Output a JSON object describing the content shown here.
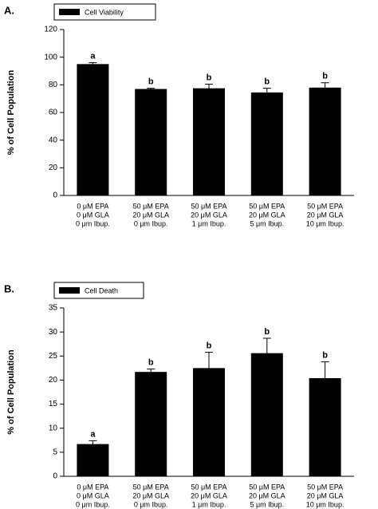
{
  "chart_data": [
    {
      "type": "bar",
      "panel": "A.",
      "ylabel": "% of Cell Population",
      "categories": [
        [
          "0 μM EPA",
          "0 μM GLA",
          "0 μm Ibup."
        ],
        [
          "50 μM EPA",
          "20 μM GLA",
          "0 μm Ibup."
        ],
        [
          "50 μM EPA",
          "20 μM GLA",
          "1 μm Ibup."
        ],
        [
          "50 μM EPA",
          "20 μM GLA",
          "5 μm Ibup."
        ],
        [
          "50 μM EPA",
          "20 μM GLA",
          "10 μm Ibup."
        ]
      ],
      "series": [
        {
          "name": "Cell Viability",
          "color": "#000000",
          "values": [
            95,
            77,
            77.5,
            74.5,
            78
          ],
          "errors": [
            1,
            0.5,
            3,
            3,
            3.5
          ]
        }
      ],
      "annotations": [
        "a",
        "b",
        "b",
        "b",
        "b"
      ],
      "ylim": [
        0,
        120
      ],
      "yticks": [
        0,
        20,
        40,
        60,
        80,
        100,
        120
      ],
      "legend": "top-left"
    },
    {
      "type": "bar",
      "panel": "B.",
      "ylabel": "% of Cell Population",
      "categories": [
        [
          "0 μM EPA",
          "0 μM GLA",
          "0 μm Ibup."
        ],
        [
          "50 μM EPA",
          "20 μM GLA",
          "0 μm Ibup."
        ],
        [
          "50 μM EPA",
          "20 μM GLA",
          "1 μm Ibup."
        ],
        [
          "50 μM EPA",
          "20 μM GLA",
          "5 μm Ibup."
        ],
        [
          "50 μM EPA",
          "20 μM GLA",
          "10 μm Ibup."
        ]
      ],
      "series": [
        {
          "name": "Cell Death",
          "color": "#000000",
          "values": [
            6.7,
            21.7,
            22.5,
            25.6,
            20.4
          ],
          "errors": [
            0.7,
            0.6,
            3.3,
            3.1,
            3.4
          ]
        }
      ],
      "annotations": [
        "a",
        "b",
        "b",
        "b",
        "b"
      ],
      "ylim": [
        0,
        35
      ],
      "yticks": [
        0,
        5,
        10,
        15,
        20,
        25,
        30,
        35
      ],
      "legend": "top-left"
    }
  ]
}
